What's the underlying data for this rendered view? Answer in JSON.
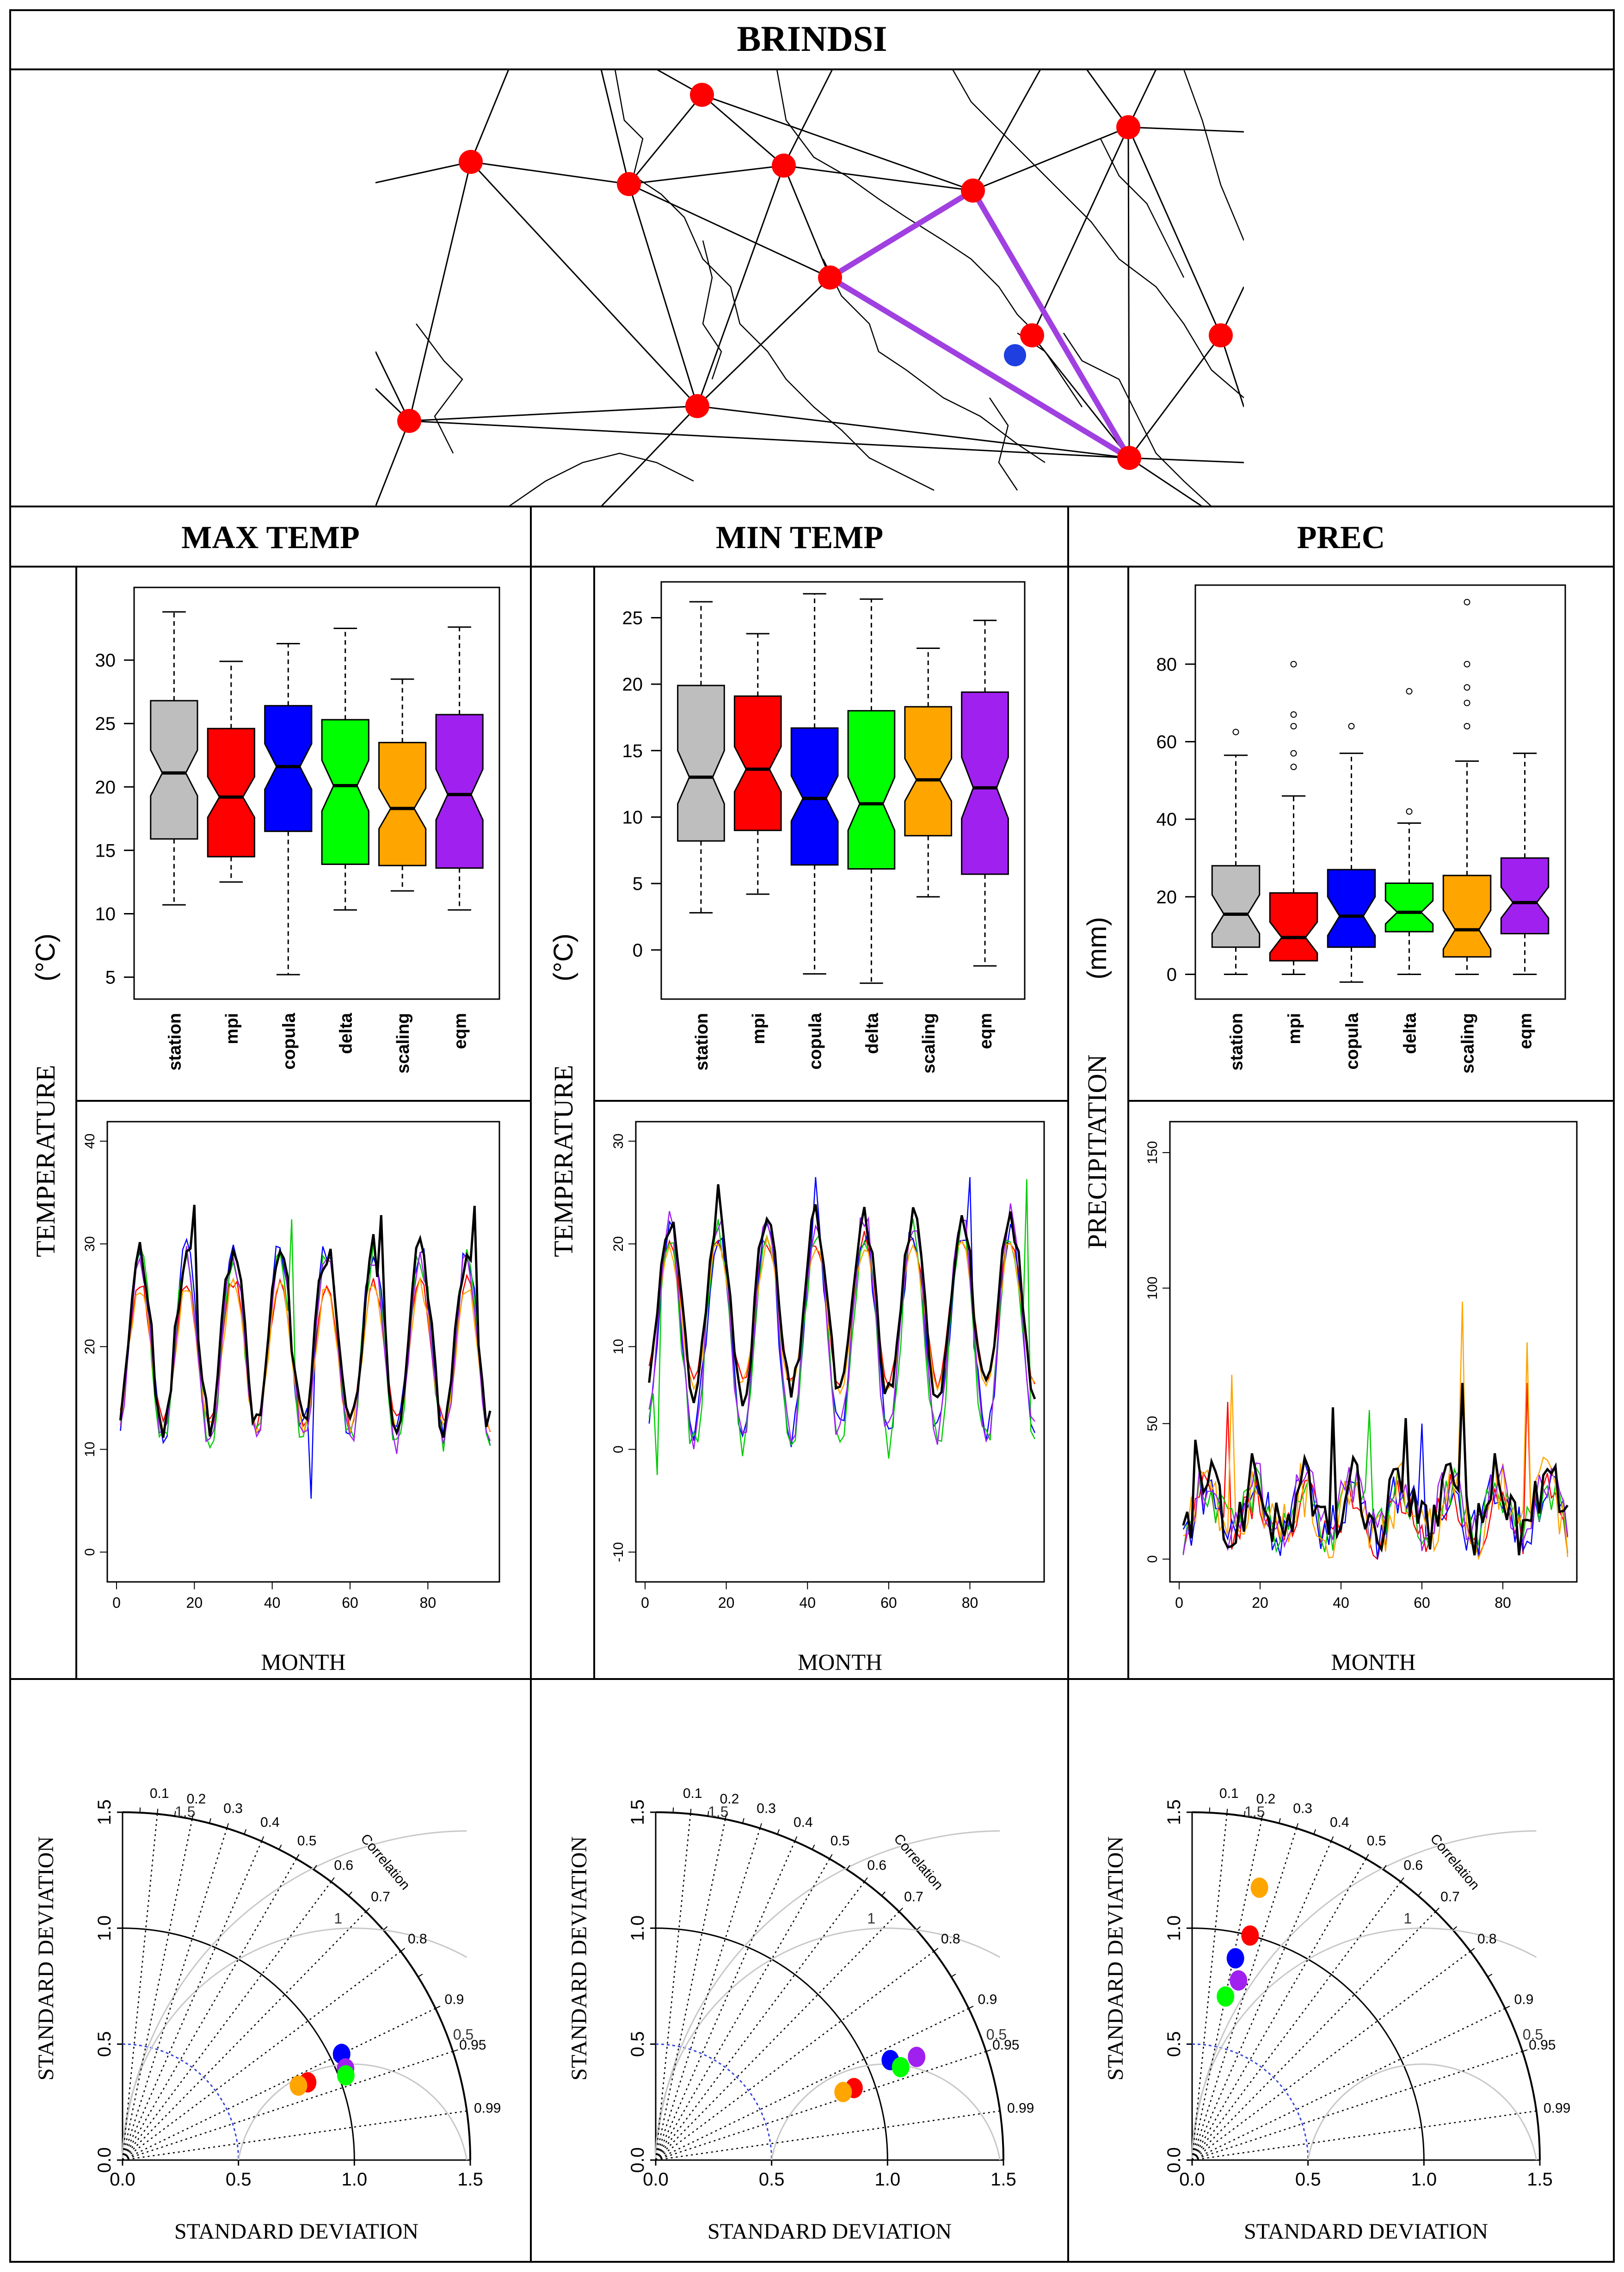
{
  "title": "BRINDSI",
  "columns": [
    "MAX TEMP",
    "MIN TEMP",
    "PREC"
  ],
  "colors": {
    "station": "#bebebe",
    "mpi": "#ff0000",
    "copula": "#0000ff",
    "delta": "#00ff00",
    "scaling": "#ffa500",
    "eqm": "#a020f0",
    "map_node": "#ff0000",
    "map_target": "#1f3fe0",
    "map_triangle": "#a040e0"
  },
  "map": {
    "description_nodes": 12,
    "legend": []
  },
  "row_labels": {
    "temperature": "TEMPERATURE",
    "temp_unit": "(°C)",
    "precipitation": "PRECIPITATION",
    "prec_unit": "(mm)",
    "month": "MONTH",
    "std_dev": "STANDARD DEVIATION",
    "correlation": "Correlation"
  },
  "chart_data": [
    {
      "id": "box-max",
      "type": "box",
      "title": "MAX TEMP",
      "categories": [
        "station",
        "mpi",
        "copula",
        "delta",
        "scaling",
        "eqm"
      ],
      "ylim": [
        4,
        35
      ],
      "yticks": [
        5,
        10,
        15,
        20,
        25,
        30
      ],
      "boxes": [
        {
          "min": 10.7,
          "q1": 15.9,
          "median": 21.1,
          "q3": 26.8,
          "max": 33.8,
          "notch": 1.8,
          "outliers": []
        },
        {
          "min": 12.5,
          "q1": 14.5,
          "median": 19.2,
          "q3": 24.6,
          "max": 29.9,
          "notch": 1.6,
          "outliers": []
        },
        {
          "min": 5.2,
          "q1": 16.5,
          "median": 21.6,
          "q3": 26.4,
          "max": 31.3,
          "notch": 1.8,
          "outliers": []
        },
        {
          "min": 10.3,
          "q1": 13.9,
          "median": 20.1,
          "q3": 25.3,
          "max": 32.5,
          "notch": 2.0,
          "outliers": []
        },
        {
          "min": 11.8,
          "q1": 13.8,
          "median": 18.3,
          "q3": 23.5,
          "max": 28.5,
          "notch": 1.6,
          "outliers": []
        },
        {
          "min": 10.3,
          "q1": 13.6,
          "median": 19.4,
          "q3": 25.7,
          "max": 32.6,
          "notch": 2.0,
          "outliers": []
        }
      ]
    },
    {
      "id": "box-min",
      "type": "box",
      "title": "MIN TEMP",
      "categories": [
        "station",
        "mpi",
        "copula",
        "delta",
        "scaling",
        "eqm"
      ],
      "ylim": [
        -3,
        27
      ],
      "yticks": [
        0,
        5,
        10,
        15,
        20,
        25
      ],
      "boxes": [
        {
          "min": 2.8,
          "q1": 8.2,
          "median": 13.0,
          "q3": 19.9,
          "max": 26.2,
          "notch": 2.0,
          "outliers": []
        },
        {
          "min": 4.2,
          "q1": 9.0,
          "median": 13.6,
          "q3": 19.1,
          "max": 23.8,
          "notch": 1.7,
          "outliers": []
        },
        {
          "min": -1.8,
          "q1": 6.4,
          "median": 11.4,
          "q3": 16.7,
          "max": 26.8,
          "notch": 1.7,
          "outliers": []
        },
        {
          "min": -2.5,
          "q1": 6.1,
          "median": 11.0,
          "q3": 18.0,
          "max": 26.4,
          "notch": 2.0,
          "outliers": []
        },
        {
          "min": 4.0,
          "q1": 8.6,
          "median": 12.8,
          "q3": 18.3,
          "max": 22.7,
          "notch": 1.6,
          "outliers": []
        },
        {
          "min": -1.2,
          "q1": 5.7,
          "median": 12.2,
          "q3": 19.4,
          "max": 24.8,
          "notch": 2.3,
          "outliers": []
        }
      ]
    },
    {
      "id": "box-prec",
      "type": "box",
      "title": "PREC",
      "categories": [
        "station",
        "mpi",
        "copula",
        "delta",
        "scaling",
        "eqm"
      ],
      "ylim": [
        -4,
        98
      ],
      "yticks": [
        0,
        20,
        40,
        60,
        80
      ],
      "boxes": [
        {
          "min": 0,
          "q1": 7,
          "median": 15.5,
          "q3": 28,
          "max": 56.5,
          "notch": 5,
          "outliers": [
            62.5
          ]
        },
        {
          "min": 0,
          "q1": 3.5,
          "median": 9.5,
          "q3": 21,
          "max": 46,
          "notch": 4,
          "outliers": [
            53.5,
            57,
            64,
            67,
            80
          ]
        },
        {
          "min": -2,
          "q1": 7,
          "median": 15,
          "q3": 27,
          "max": 57,
          "notch": 5,
          "outliers": [
            64
          ]
        },
        {
          "min": 0,
          "q1": 11,
          "median": 16,
          "q3": 23.5,
          "max": 39,
          "notch": 3,
          "outliers": [
            42,
            73
          ]
        },
        {
          "min": 0,
          "q1": 4.5,
          "median": 11.5,
          "q3": 25.5,
          "max": 55,
          "notch": 5,
          "outliers": [
            64,
            70,
            74,
            80,
            96
          ]
        },
        {
          "min": 0,
          "q1": 10.5,
          "median": 18.5,
          "q3": 30,
          "max": 57,
          "notch": 4,
          "outliers": []
        }
      ]
    },
    {
      "id": "line-max",
      "type": "line",
      "title": "MAX TEMP",
      "xlabel": "MONTH",
      "xlim": [
        0,
        96
      ],
      "ylim": [
        -2,
        41
      ],
      "xticks": [
        0,
        20,
        40,
        60,
        80
      ],
      "yticks": [
        0,
        10,
        20,
        30,
        40
      ],
      "n": 96,
      "series": [
        {
          "name": "station",
          "color": "#000000",
          "mean": 21,
          "amp": 8.5,
          "jitter": 1.6,
          "peaks": [
            {
              "i": 20,
              "v": 33.8
            },
            {
              "i": 92,
              "v": 33.7
            },
            {
              "i": 68,
              "v": 32.8
            }
          ]
        },
        {
          "name": "mpi",
          "color": "#ff0000",
          "mean": 19.5,
          "amp": 7,
          "jitter": 0.8,
          "peaks": []
        },
        {
          "name": "copula",
          "color": "#0000ff",
          "mean": 20.5,
          "amp": 9,
          "jitter": 1.5,
          "peaks": [
            {
              "i": 50,
              "v": 5.2
            }
          ]
        },
        {
          "name": "delta",
          "color": "#00cc00",
          "mean": 20,
          "amp": 9,
          "jitter": 1.4,
          "peaks": [
            {
              "i": 45,
              "v": 32.4
            }
          ]
        },
        {
          "name": "scaling",
          "color": "#ffa500",
          "mean": 19,
          "amp": 7,
          "jitter": 0.9,
          "peaks": []
        },
        {
          "name": "eqm",
          "color": "#a020f0",
          "mean": 19.8,
          "amp": 9,
          "jitter": 1.3,
          "peaks": []
        }
      ]
    },
    {
      "id": "line-min",
      "type": "line",
      "title": "MIN TEMP",
      "xlabel": "MONTH",
      "xlim": [
        0,
        96
      ],
      "ylim": [
        -12,
        31
      ],
      "xticks": [
        0,
        20,
        40,
        60,
        80
      ],
      "yticks": [
        -10,
        0,
        10,
        20,
        30
      ],
      "n": 96,
      "series": [
        {
          "name": "station",
          "color": "#000000",
          "mean": 14,
          "amp": 8.5,
          "jitter": 1.4,
          "peaks": [
            {
              "i": 18,
              "v": 25.8
            }
          ]
        },
        {
          "name": "mpi",
          "color": "#ff0000",
          "mean": 13.5,
          "amp": 7,
          "jitter": 0.8,
          "peaks": []
        },
        {
          "name": "copula",
          "color": "#0000ff",
          "mean": 11.5,
          "amp": 10,
          "jitter": 1.6,
          "peaks": [
            {
              "i": 42,
              "v": 26.5
            },
            {
              "i": 80,
              "v": 26.5
            }
          ]
        },
        {
          "name": "delta",
          "color": "#00cc00",
          "mean": 11,
          "amp": 10.5,
          "jitter": 1.6,
          "peaks": [
            {
              "i": 94,
              "v": 26.3
            },
            {
              "i": 3,
              "v": -2.5
            }
          ]
        },
        {
          "name": "scaling",
          "color": "#ffa500",
          "mean": 13,
          "amp": 7,
          "jitter": 0.9,
          "peaks": []
        },
        {
          "name": "eqm",
          "color": "#a020f0",
          "mean": 12,
          "amp": 10.5,
          "jitter": 1.5,
          "peaks": []
        }
      ]
    },
    {
      "id": "line-prec",
      "type": "line",
      "title": "PREC",
      "xlabel": "MONTH",
      "xlim": [
        0,
        96
      ],
      "ylim": [
        -5,
        158
      ],
      "xticks": [
        0,
        20,
        40,
        60,
        80
      ],
      "yticks": [
        0,
        50,
        100,
        150
      ],
      "n": 96,
      "series": [
        {
          "name": "station",
          "color": "#000000",
          "mean": 17,
          "amp": 10,
          "jitter": 11,
          "peaks": [
            {
              "i": 4,
              "v": 44
            },
            {
              "i": 38,
              "v": 56
            },
            {
              "i": 56,
              "v": 52
            },
            {
              "i": 70,
              "v": 65
            }
          ]
        },
        {
          "name": "mpi",
          "color": "#ff0000",
          "mean": 13,
          "amp": 9,
          "jitter": 9,
          "peaks": [
            {
              "i": 12,
              "v": 58
            },
            {
              "i": 86,
              "v": 65
            }
          ]
        },
        {
          "name": "copula",
          "color": "#0000ff",
          "mean": 16,
          "amp": 9,
          "jitter": 10,
          "peaks": [
            {
              "i": 60,
              "v": 50
            }
          ]
        },
        {
          "name": "delta",
          "color": "#00cc00",
          "mean": 16,
          "amp": 8,
          "jitter": 9,
          "peaks": [
            {
              "i": 47,
              "v": 55
            }
          ]
        },
        {
          "name": "scaling",
          "color": "#ffa500",
          "mean": 15,
          "amp": 10,
          "jitter": 12,
          "peaks": [
            {
              "i": 13,
              "v": 68
            },
            {
              "i": 70,
              "v": 95
            },
            {
              "i": 86,
              "v": 80
            }
          ]
        },
        {
          "name": "eqm",
          "color": "#a020f0",
          "mean": 18,
          "amp": 9,
          "jitter": 10,
          "peaks": []
        }
      ]
    },
    {
      "id": "taylor-max",
      "type": "taylor",
      "title": "MAX TEMP",
      "ylabel": "STANDARD DEVIATION",
      "xlabel": "STANDARD DEVIATION",
      "max_sd": 1.5,
      "ticks": [
        0.0,
        0.5,
        1.0,
        1.5
      ],
      "corr_ticks": [
        0.1,
        0.2,
        0.3,
        0.4,
        0.5,
        0.6,
        0.7,
        0.8,
        0.9,
        0.95,
        0.99
      ],
      "rms_labels": [
        "0.5",
        "1",
        "1.5"
      ],
      "points": [
        {
          "name": "copula",
          "sd": 1.05,
          "corr": 0.9,
          "color": "#0000ff"
        },
        {
          "name": "eqm",
          "sd": 1.04,
          "corr": 0.925,
          "color": "#a020f0"
        },
        {
          "name": "delta",
          "sd": 1.03,
          "corr": 0.935,
          "color": "#00ff00"
        },
        {
          "name": "mpi",
          "sd": 0.866,
          "corr": 0.922,
          "color": "#ff0000"
        },
        {
          "name": "scaling",
          "sd": 0.824,
          "corr": 0.921,
          "color": "#ffa500"
        }
      ]
    },
    {
      "id": "taylor-min",
      "type": "taylor",
      "title": "MIN TEMP",
      "ylabel": "STANDARD DEVIATION",
      "xlabel": "STANDARD DEVIATION",
      "max_sd": 1.5,
      "ticks": [
        0.0,
        0.5,
        1.0,
        1.5
      ],
      "corr_ticks": [
        0.1,
        0.2,
        0.3,
        0.4,
        0.5,
        0.6,
        0.7,
        0.8,
        0.9,
        0.95,
        0.99
      ],
      "rms_labels": [
        "0.5",
        "1",
        "1.5"
      ],
      "points": [
        {
          "name": "copula",
          "sd": 1.1,
          "corr": 0.92,
          "color": "#0000ff"
        },
        {
          "name": "eqm",
          "sd": 1.21,
          "corr": 0.93,
          "color": "#a020f0"
        },
        {
          "name": "delta",
          "sd": 1.13,
          "corr": 0.935,
          "color": "#00ff00"
        },
        {
          "name": "mpi",
          "sd": 0.91,
          "corr": 0.94,
          "color": "#ff0000"
        },
        {
          "name": "scaling",
          "sd": 0.86,
          "corr": 0.94,
          "color": "#ffa500"
        }
      ]
    },
    {
      "id": "taylor-prec",
      "type": "taylor",
      "title": "PREC",
      "ylabel": "STANDARD DEVIATION",
      "xlabel": "STANDARD DEVIATION",
      "max_sd": 1.5,
      "ticks": [
        0.0,
        0.5,
        1.0,
        1.5
      ],
      "corr_ticks": [
        0.1,
        0.2,
        0.3,
        0.4,
        0.5,
        0.6,
        0.7,
        0.8,
        0.9,
        0.95,
        0.99
      ],
      "rms_labels": [
        "0.5",
        "1",
        "1.5"
      ],
      "points": [
        {
          "name": "scaling",
          "sd": 1.21,
          "corr": 0.24,
          "color": "#ffa500"
        },
        {
          "name": "mpi",
          "sd": 1.0,
          "corr": 0.25,
          "color": "#ff0000"
        },
        {
          "name": "copula",
          "sd": 0.89,
          "corr": 0.21,
          "color": "#0000ff"
        },
        {
          "name": "eqm",
          "sd": 0.8,
          "corr": 0.25,
          "color": "#a020f0"
        },
        {
          "name": "delta",
          "sd": 0.72,
          "corr": 0.2,
          "color": "#00ff00"
        }
      ]
    }
  ]
}
